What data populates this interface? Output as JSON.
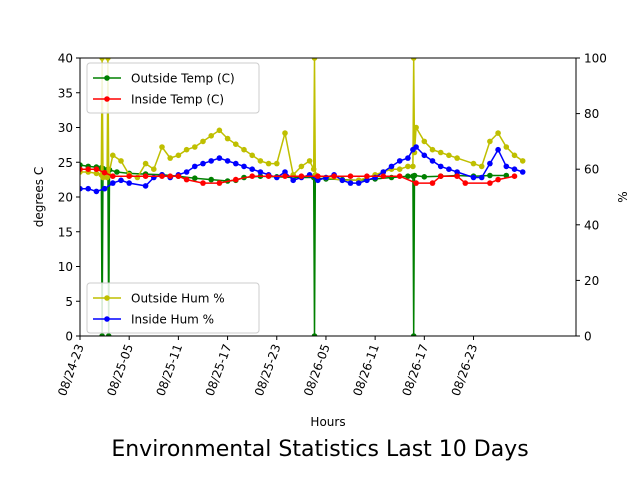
{
  "chart_data": {
    "type": "line",
    "title": "Environmental Statistics Last 10 Days",
    "xlabel": "Hours",
    "ylabel_left": "degrees C",
    "ylabel_right": "%",
    "xlim": [
      0,
      60.5
    ],
    "ylim_left": [
      0,
      40
    ],
    "ylim_right": [
      0,
      100
    ],
    "grid": false,
    "x_ticks": [
      {
        "x": 0,
        "label": "08/24-23"
      },
      {
        "x": 6,
        "label": "08/25-05"
      },
      {
        "x": 12,
        "label": "08/25-11"
      },
      {
        "x": 18,
        "label": "08/25-17"
      },
      {
        "x": 24,
        "label": "08/25-23"
      },
      {
        "x": 30,
        "label": "08/26-05"
      },
      {
        "x": 36,
        "label": "08/26-11"
      },
      {
        "x": 42,
        "label": "08/26-17"
      },
      {
        "x": 48,
        "label": "08/26-23"
      }
    ],
    "y_ticks_left": [
      0,
      5,
      10,
      15,
      20,
      25,
      30,
      35,
      40
    ],
    "y_ticks_right": [
      0,
      20,
      40,
      60,
      80,
      100
    ],
    "legend_upper": {
      "placement": "upper-left",
      "entries": [
        "Outside Temp (C)",
        "Inside Temp (C)"
      ]
    },
    "legend_lower": {
      "placement": "lower-left",
      "entries": [
        "Outside Hum %",
        "Inside Hum %"
      ]
    },
    "series": [
      {
        "name": "Outside Temp (C)",
        "axis": "left",
        "color": "#008000",
        "points": [
          [
            0,
            24.6
          ],
          [
            1,
            24.4
          ],
          [
            2,
            24.3
          ],
          [
            2.6,
            24.2
          ],
          [
            2.7,
            0
          ],
          [
            2.8,
            24.1
          ],
          [
            3.4,
            24.0
          ],
          [
            3.5,
            0
          ],
          [
            3.6,
            23.9
          ],
          [
            4.5,
            23.6
          ],
          [
            6,
            23.4
          ],
          [
            8,
            23.3
          ],
          [
            10,
            23.2
          ],
          [
            12,
            23.0
          ],
          [
            14,
            22.7
          ],
          [
            16,
            22.5
          ],
          [
            18,
            22.3
          ],
          [
            19,
            22.4
          ],
          [
            20,
            22.8
          ],
          [
            22,
            23.0
          ],
          [
            24,
            22.9
          ],
          [
            26,
            22.8
          ],
          [
            28.5,
            22.8
          ],
          [
            28.6,
            0
          ],
          [
            28.7,
            22.7
          ],
          [
            30,
            22.6
          ],
          [
            32,
            22.5
          ],
          [
            34,
            22.4
          ],
          [
            36,
            22.6
          ],
          [
            38,
            22.8
          ],
          [
            40,
            23.0
          ],
          [
            40.6,
            23.0
          ],
          [
            40.7,
            0
          ],
          [
            40.8,
            23.1
          ],
          [
            42,
            22.9
          ],
          [
            44,
            23.0
          ],
          [
            46,
            23.1
          ],
          [
            48,
            23.0
          ],
          [
            50,
            23.1
          ],
          [
            52,
            23.1
          ]
        ]
      },
      {
        "name": "Inside Temp (C)",
        "axis": "left",
        "color": "#ff0000",
        "points": [
          [
            0,
            24.0
          ],
          [
            1,
            24.0
          ],
          [
            2,
            24.0
          ],
          [
            3,
            23.5
          ],
          [
            4,
            23.0
          ],
          [
            6,
            23.0
          ],
          [
            8,
            23.0
          ],
          [
            10,
            23.0
          ],
          [
            11,
            23.0
          ],
          [
            12,
            23.0
          ],
          [
            13,
            22.5
          ],
          [
            15,
            22.0
          ],
          [
            17,
            22.0
          ],
          [
            19,
            22.5
          ],
          [
            21,
            23.0
          ],
          [
            23,
            23.0
          ],
          [
            25,
            23.0
          ],
          [
            27,
            23.0
          ],
          [
            29,
            23.0
          ],
          [
            31,
            23.0
          ],
          [
            33,
            23.0
          ],
          [
            35,
            23.0
          ],
          [
            37,
            23.0
          ],
          [
            39,
            23.0
          ],
          [
            41,
            22.0
          ],
          [
            43,
            22.0
          ],
          [
            44,
            23.0
          ],
          [
            46,
            23.0
          ],
          [
            47,
            22.0
          ],
          [
            50,
            22.0
          ],
          [
            51,
            22.5
          ],
          [
            53,
            23.0
          ]
        ]
      },
      {
        "name": "Outside Hum %",
        "axis": "right",
        "color": "#bfbf00",
        "points": [
          [
            0,
            59
          ],
          [
            1,
            59
          ],
          [
            2,
            58.5
          ],
          [
            2.6,
            58
          ],
          [
            2.7,
            100
          ],
          [
            2.8,
            57
          ],
          [
            3.3,
            57
          ],
          [
            3.4,
            100
          ],
          [
            3.5,
            58
          ],
          [
            4,
            65
          ],
          [
            5,
            63
          ],
          [
            6,
            58
          ],
          [
            7,
            57
          ],
          [
            8,
            62
          ],
          [
            9,
            60
          ],
          [
            10,
            68
          ],
          [
            11,
            64
          ],
          [
            12,
            65
          ],
          [
            13,
            67
          ],
          [
            14,
            68
          ],
          [
            15,
            70
          ],
          [
            16,
            72
          ],
          [
            17,
            74
          ],
          [
            18,
            71
          ],
          [
            19,
            69
          ],
          [
            20,
            67
          ],
          [
            21,
            65
          ],
          [
            22,
            63
          ],
          [
            23,
            62
          ],
          [
            24,
            62
          ],
          [
            25,
            73
          ],
          [
            26,
            58
          ],
          [
            27,
            61
          ],
          [
            28,
            63
          ],
          [
            28.5,
            60
          ],
          [
            28.6,
            100
          ],
          [
            28.7,
            58
          ],
          [
            30,
            57
          ],
          [
            32,
            56
          ],
          [
            34,
            56
          ],
          [
            36,
            58
          ],
          [
            37,
            59
          ],
          [
            38,
            60
          ],
          [
            39,
            60
          ],
          [
            40,
            61
          ],
          [
            40.6,
            61
          ],
          [
            40.7,
            100
          ],
          [
            40.8,
            66
          ],
          [
            41,
            75
          ],
          [
            42,
            70
          ],
          [
            43,
            67
          ],
          [
            44,
            66
          ],
          [
            45,
            65
          ],
          [
            46,
            64
          ],
          [
            48,
            62
          ],
          [
            49,
            61
          ],
          [
            50,
            70
          ],
          [
            51,
            73
          ],
          [
            52,
            68
          ],
          [
            53,
            65
          ],
          [
            54,
            63
          ]
        ]
      },
      {
        "name": "Inside Hum %",
        "axis": "right",
        "color": "#0000ff",
        "points": [
          [
            0,
            53
          ],
          [
            1,
            53
          ],
          [
            2,
            52
          ],
          [
            3,
            53
          ],
          [
            4,
            55
          ],
          [
            5,
            56
          ],
          [
            6,
            55
          ],
          [
            8,
            54
          ],
          [
            9,
            57
          ],
          [
            10,
            58
          ],
          [
            11,
            57
          ],
          [
            12,
            58
          ],
          [
            13,
            59
          ],
          [
            14,
            61
          ],
          [
            15,
            62
          ],
          [
            16,
            63
          ],
          [
            17,
            64
          ],
          [
            18,
            63
          ],
          [
            19,
            62
          ],
          [
            20,
            61
          ],
          [
            21,
            60
          ],
          [
            22,
            59
          ],
          [
            23,
            58
          ],
          [
            24,
            57
          ],
          [
            25,
            59
          ],
          [
            26,
            56
          ],
          [
            27,
            57
          ],
          [
            28,
            58
          ],
          [
            29,
            56
          ],
          [
            30,
            57
          ],
          [
            31,
            58
          ],
          [
            32,
            56
          ],
          [
            33,
            55
          ],
          [
            34,
            55
          ],
          [
            35,
            56
          ],
          [
            36,
            57
          ],
          [
            37,
            59
          ],
          [
            38,
            61
          ],
          [
            39,
            63
          ],
          [
            40,
            64
          ],
          [
            40.6,
            67
          ],
          [
            41,
            68
          ],
          [
            42,
            65
          ],
          [
            43,
            63
          ],
          [
            44,
            61
          ],
          [
            45,
            60
          ],
          [
            46,
            59
          ],
          [
            48,
            57
          ],
          [
            49,
            57
          ],
          [
            50,
            62
          ],
          [
            51,
            67
          ],
          [
            52,
            61
          ],
          [
            53,
            60
          ],
          [
            54,
            59
          ]
        ]
      }
    ]
  }
}
